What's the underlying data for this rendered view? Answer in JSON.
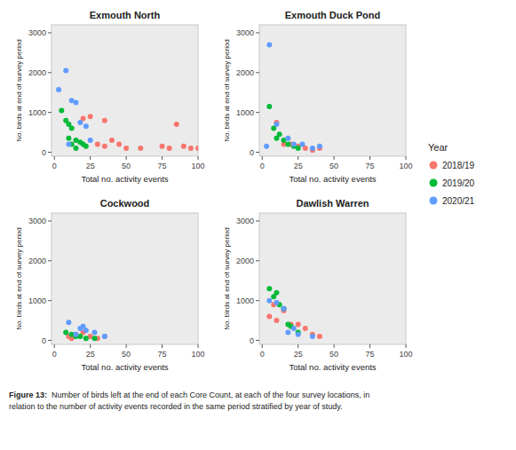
{
  "chart_data": [
    {
      "type": "scatter",
      "title": "Exmouth North",
      "xlabel": "Total no. activity events",
      "ylabel": "No. birds at end of survey period",
      "series": [
        {
          "name": "2018/19",
          "color": "#F8766D",
          "x": [
            20,
            25,
            30,
            35,
            45,
            50,
            60,
            75,
            80,
            85,
            90,
            95,
            100,
            35,
            40
          ],
          "values": [
            850,
            900,
            200,
            150,
            200,
            100,
            100,
            150,
            100,
            700,
            150,
            100,
            100,
            800,
            300
          ]
        },
        {
          "name": "2019/20",
          "color": "#00BA38",
          "x": [
            5,
            8,
            10,
            12,
            15,
            18,
            20,
            22,
            10,
            12,
            15
          ],
          "values": [
            1050,
            800,
            700,
            600,
            300,
            250,
            200,
            150,
            350,
            200,
            100
          ]
        },
        {
          "name": "2020/21",
          "color": "#619CFF",
          "x": [
            3,
            8,
            12,
            15,
            18,
            22,
            25,
            10
          ],
          "values": [
            1570,
            2050,
            1300,
            1250,
            750,
            650,
            300,
            200
          ]
        }
      ],
      "xlim": [
        -2,
        100
      ],
      "ylim": [
        -100,
        3200
      ],
      "xticks": [
        0,
        25,
        50,
        75,
        100
      ],
      "yticks": [
        0,
        1000,
        2000,
        3000
      ],
      "grid": false,
      "legend": "right"
    },
    {
      "type": "scatter",
      "title": "Exmouth Duck Pond",
      "xlabel": "Total no. activity events",
      "ylabel": "No. birds at end of survey period",
      "series": [
        {
          "name": "2018/19",
          "color": "#F8766D",
          "x": [
            10,
            15,
            20,
            25,
            30,
            35,
            40
          ],
          "values": [
            750,
            200,
            200,
            150,
            100,
            50,
            100
          ]
        },
        {
          "name": "2019/20",
          "color": "#00BA38",
          "x": [
            5,
            8,
            12,
            15,
            18,
            22,
            25,
            10
          ],
          "values": [
            1150,
            600,
            450,
            300,
            200,
            150,
            100,
            350
          ]
        },
        {
          "name": "2020/21",
          "color": "#619CFF",
          "x": [
            5,
            10,
            18,
            22,
            28,
            35,
            40,
            3
          ],
          "values": [
            2700,
            700,
            350,
            200,
            200,
            100,
            150,
            150
          ]
        }
      ],
      "xlim": [
        -2,
        100
      ],
      "ylim": [
        -100,
        3200
      ],
      "xticks": [
        0,
        25,
        50,
        75,
        100
      ],
      "yticks": [
        0,
        1000,
        2000,
        3000
      ],
      "grid": false,
      "legend": "right"
    },
    {
      "type": "scatter",
      "title": "Cockwood",
      "xlabel": "Total no. activity events",
      "ylabel": "No. birds at end of survey period",
      "series": [
        {
          "name": "2018/19",
          "color": "#F8766D",
          "x": [
            10,
            15,
            20,
            25,
            30,
            35,
            12
          ],
          "values": [
            100,
            150,
            200,
            100,
            50,
            100,
            50
          ]
        },
        {
          "name": "2019/20",
          "color": "#00BA38",
          "x": [
            8,
            12,
            18,
            22,
            28,
            15
          ],
          "values": [
            200,
            150,
            100,
            50,
            50,
            100
          ]
        },
        {
          "name": "2020/21",
          "color": "#619CFF",
          "x": [
            10,
            18,
            22,
            28,
            35,
            15,
            20
          ],
          "values": [
            450,
            300,
            250,
            200,
            100,
            150,
            350
          ]
        }
      ],
      "xlim": [
        -2,
        100
      ],
      "ylim": [
        -100,
        3200
      ],
      "xticks": [
        0,
        25,
        50,
        75,
        100
      ],
      "yticks": [
        0,
        1000,
        2000,
        3000
      ],
      "grid": false,
      "legend": "right"
    },
    {
      "type": "scatter",
      "title": "Dawlish Warren",
      "xlabel": "Total no. activity events",
      "ylabel": "No. birds at end of survey period",
      "series": [
        {
          "name": "2018/19",
          "color": "#F8766D",
          "x": [
            5,
            10,
            15,
            20,
            25,
            30,
            35,
            40,
            8
          ],
          "values": [
            600,
            500,
            750,
            400,
            400,
            300,
            150,
            100,
            900
          ]
        },
        {
          "name": "2019/20",
          "color": "#00BA38",
          "x": [
            5,
            8,
            12,
            15,
            20,
            25,
            10,
            18
          ],
          "values": [
            1300,
            1100,
            900,
            800,
            350,
            200,
            1200,
            400
          ]
        },
        {
          "name": "2020/21",
          "color": "#619CFF",
          "x": [
            5,
            10,
            18,
            25,
            35,
            15,
            22
          ],
          "values": [
            1000,
            950,
            200,
            150,
            100,
            800,
            300
          ]
        }
      ],
      "xlim": [
        -2,
        100
      ],
      "ylim": [
        -100,
        3200
      ],
      "xticks": [
        0,
        25,
        50,
        75,
        100
      ],
      "yticks": [
        0,
        1000,
        2000,
        3000
      ],
      "grid": false,
      "legend": "right"
    }
  ],
  "legend_title": "Year",
  "caption_bold": "Figure 13: ",
  "caption": "Number of birds left at the end of each Core Count, at each of the four survey locations, in\nrelation to the number of activity events recorded in the same period stratified by year of study."
}
